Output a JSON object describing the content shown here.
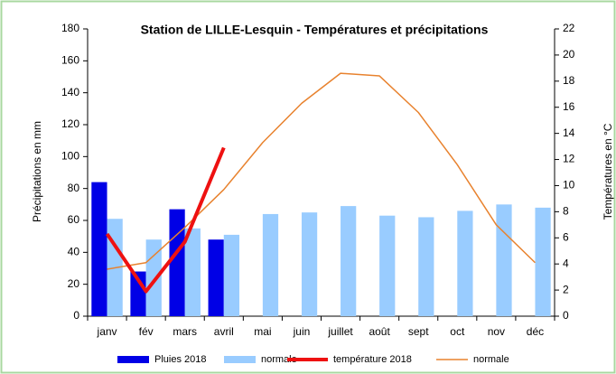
{
  "chart_data": {
    "type": "bar_line",
    "title": "Station de LILLE-Lesquin - Températures et précipitations",
    "y_label": "Précipitations en mm",
    "y2_label": "Températures en °C",
    "categories": [
      "janv",
      "fév",
      "mars",
      "avril",
      "mai",
      "juin",
      "juillet",
      "août",
      "sept",
      "oct",
      "nov",
      "déc"
    ],
    "series": [
      {
        "name": "Pluies 2018",
        "type": "bar",
        "color": "#0000e6",
        "values": [
          84,
          28,
          67,
          48,
          null,
          null,
          null,
          null,
          null,
          null,
          null,
          null
        ]
      },
      {
        "name": "normale",
        "type": "bar",
        "color": "#99ccff",
        "values": [
          61,
          48,
          55,
          51,
          64,
          65,
          69,
          63,
          62,
          66,
          70,
          68
        ]
      },
      {
        "name": "température 2018",
        "type": "line",
        "axis": "y2",
        "color": "#ee1111",
        "values": [
          6.3,
          1.9,
          5.7,
          12.9,
          null,
          null,
          null,
          null,
          null,
          null,
          null,
          null
        ]
      },
      {
        "name": "normale",
        "type": "line",
        "axis": "y2",
        "color": "#e8822e",
        "values": [
          3.6,
          4.1,
          6.8,
          9.7,
          13.3,
          16.3,
          18.6,
          18.4,
          15.6,
          11.6,
          7.0,
          4.1
        ]
      }
    ],
    "ylim": [
      0,
      180
    ],
    "yticks": [
      0,
      20,
      40,
      60,
      80,
      100,
      120,
      140,
      160,
      180
    ],
    "y2lim": [
      0,
      22
    ],
    "y2ticks": [
      0,
      2,
      4,
      6,
      8,
      10,
      12,
      14,
      16,
      18,
      20,
      22
    ],
    "grid": false
  }
}
